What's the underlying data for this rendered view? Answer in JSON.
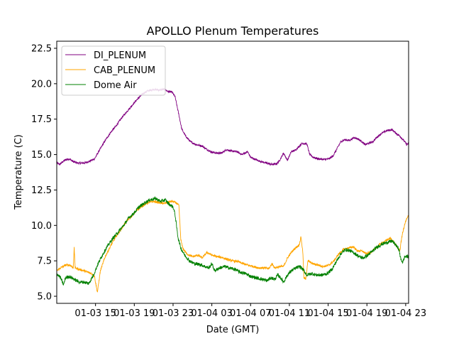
{
  "chart_data": {
    "type": "line",
    "title": "APOLLO Plenum Temperatures",
    "xlabel": "Date (GMT)",
    "ylabel": "Temperature (C)",
    "x_unit": "hours since 01-03 11:00 GMT",
    "xlim": [
      0,
      36.3
    ],
    "ylim": [
      4.5,
      23.0
    ],
    "x_ticks": [
      {
        "value": 4,
        "label": "01-03 15"
      },
      {
        "value": 8,
        "label": "01-03 19"
      },
      {
        "value": 12,
        "label": "01-03 23"
      },
      {
        "value": 16,
        "label": "01-04 03"
      },
      {
        "value": 20,
        "label": "01-04 07"
      },
      {
        "value": 24,
        "label": "01-04 11"
      },
      {
        "value": 28,
        "label": "01-04 15"
      },
      {
        "value": 32,
        "label": "01-04 19"
      },
      {
        "value": 36,
        "label": "01-04 23"
      }
    ],
    "y_ticks": [
      {
        "value": 5.0,
        "label": "5.0"
      },
      {
        "value": 7.5,
        "label": "7.5"
      },
      {
        "value": 10.0,
        "label": "10.0"
      },
      {
        "value": 12.5,
        "label": "12.5"
      },
      {
        "value": 15.0,
        "label": "15.0"
      },
      {
        "value": 17.5,
        "label": "17.5"
      },
      {
        "value": 20.0,
        "label": "20.0"
      },
      {
        "value": 22.5,
        "label": "22.5"
      }
    ],
    "legend_position": "top-left",
    "series": [
      {
        "name": "DI_PLENUM",
        "color": "#800080",
        "noise": 0.07,
        "points": [
          [
            0,
            14.4
          ],
          [
            0.3,
            14.3
          ],
          [
            0.8,
            14.6
          ],
          [
            1.3,
            14.7
          ],
          [
            1.7,
            14.5
          ],
          [
            2.2,
            14.4
          ],
          [
            2.8,
            14.4
          ],
          [
            3.3,
            14.5
          ],
          [
            3.9,
            14.7
          ],
          [
            4.4,
            15.3
          ],
          [
            5.0,
            16.0
          ],
          [
            5.6,
            16.6
          ],
          [
            6.1,
            17.0
          ],
          [
            6.7,
            17.6
          ],
          [
            7.2,
            18.0
          ],
          [
            7.8,
            18.5
          ],
          [
            8.3,
            18.9
          ],
          [
            8.9,
            19.3
          ],
          [
            9.4,
            19.5
          ],
          [
            10.0,
            19.6
          ],
          [
            10.6,
            19.55
          ],
          [
            11.1,
            19.6
          ],
          [
            11.5,
            19.45
          ],
          [
            11.9,
            19.4
          ],
          [
            12.2,
            19.1
          ],
          [
            12.6,
            17.8
          ],
          [
            12.9,
            16.8
          ],
          [
            13.3,
            16.3
          ],
          [
            13.8,
            15.9
          ],
          [
            14.4,
            15.7
          ],
          [
            15.0,
            15.6
          ],
          [
            15.4,
            15.4
          ],
          [
            15.9,
            15.2
          ],
          [
            16.5,
            15.1
          ],
          [
            17.0,
            15.1
          ],
          [
            17.5,
            15.35
          ],
          [
            18.0,
            15.25
          ],
          [
            18.6,
            15.2
          ],
          [
            19.1,
            15.0
          ],
          [
            19.7,
            15.2
          ],
          [
            20.0,
            14.8
          ],
          [
            20.5,
            14.65
          ],
          [
            21.1,
            14.5
          ],
          [
            21.6,
            14.4
          ],
          [
            22.2,
            14.3
          ],
          [
            22.7,
            14.35
          ],
          [
            23.0,
            14.6
          ],
          [
            23.4,
            15.1
          ],
          [
            23.8,
            14.6
          ],
          [
            24.2,
            15.2
          ],
          [
            24.6,
            15.3
          ],
          [
            24.9,
            15.5
          ],
          [
            25.3,
            15.8
          ],
          [
            25.8,
            15.75
          ],
          [
            26.1,
            15.0
          ],
          [
            26.5,
            14.8
          ],
          [
            27.0,
            14.7
          ],
          [
            27.6,
            14.65
          ],
          [
            28.1,
            14.7
          ],
          [
            28.5,
            14.9
          ],
          [
            28.9,
            15.4
          ],
          [
            29.3,
            15.9
          ],
          [
            29.7,
            16.05
          ],
          [
            30.2,
            16.0
          ],
          [
            30.7,
            16.2
          ],
          [
            31.1,
            16.1
          ],
          [
            31.5,
            15.9
          ],
          [
            31.8,
            15.7
          ],
          [
            32.2,
            15.8
          ],
          [
            32.6,
            15.9
          ],
          [
            33.0,
            16.2
          ],
          [
            33.5,
            16.5
          ],
          [
            34.1,
            16.7
          ],
          [
            34.6,
            16.75
          ],
          [
            35.0,
            16.5
          ],
          [
            35.4,
            16.3
          ],
          [
            35.8,
            16.0
          ],
          [
            36.1,
            15.7
          ],
          [
            36.3,
            15.8
          ]
        ]
      },
      {
        "name": "CAB_PLENUM",
        "color": "#ffa500",
        "noise": 0.08,
        "points": [
          [
            0,
            6.8
          ],
          [
            0.4,
            7.0
          ],
          [
            0.9,
            7.2
          ],
          [
            1.4,
            7.2
          ],
          [
            1.7,
            7.0
          ],
          [
            1.8,
            8.4
          ],
          [
            1.9,
            7.0
          ],
          [
            2.3,
            6.9
          ],
          [
            2.8,
            6.8
          ],
          [
            3.2,
            6.7
          ],
          [
            3.6,
            6.6
          ],
          [
            3.9,
            6.4
          ],
          [
            4.1,
            5.6
          ],
          [
            4.2,
            5.3
          ],
          [
            4.5,
            6.8
          ],
          [
            5.0,
            7.8
          ],
          [
            5.6,
            8.6
          ],
          [
            6.1,
            9.2
          ],
          [
            6.7,
            9.8
          ],
          [
            7.2,
            10.3
          ],
          [
            7.8,
            10.7
          ],
          [
            8.3,
            11.1
          ],
          [
            8.9,
            11.4
          ],
          [
            9.4,
            11.6
          ],
          [
            10.0,
            11.7
          ],
          [
            10.6,
            11.6
          ],
          [
            11.1,
            11.55
          ],
          [
            11.5,
            11.65
          ],
          [
            11.9,
            11.7
          ],
          [
            12.3,
            11.6
          ],
          [
            12.6,
            11.4
          ],
          [
            12.8,
            9.0
          ],
          [
            13.0,
            8.4
          ],
          [
            13.4,
            8.0
          ],
          [
            14.0,
            7.8
          ],
          [
            14.6,
            7.9
          ],
          [
            15.0,
            7.7
          ],
          [
            15.5,
            8.1
          ],
          [
            16.0,
            7.9
          ],
          [
            16.5,
            7.8
          ],
          [
            17.0,
            7.75
          ],
          [
            17.6,
            7.6
          ],
          [
            18.1,
            7.5
          ],
          [
            18.7,
            7.45
          ],
          [
            19.2,
            7.3
          ],
          [
            19.7,
            7.2
          ],
          [
            20.3,
            7.1
          ],
          [
            20.8,
            7.0
          ],
          [
            21.4,
            7.0
          ],
          [
            21.9,
            6.95
          ],
          [
            22.2,
            7.3
          ],
          [
            22.5,
            7.0
          ],
          [
            23.0,
            7.1
          ],
          [
            23.4,
            7.1
          ],
          [
            23.8,
            7.7
          ],
          [
            24.2,
            8.1
          ],
          [
            24.6,
            8.4
          ],
          [
            25.0,
            8.6
          ],
          [
            25.2,
            9.2
          ],
          [
            25.4,
            8.0
          ],
          [
            25.5,
            6.3
          ],
          [
            25.7,
            6.2
          ],
          [
            25.9,
            7.5
          ],
          [
            26.4,
            7.3
          ],
          [
            27.0,
            7.2
          ],
          [
            27.5,
            7.1
          ],
          [
            28.1,
            7.2
          ],
          [
            28.6,
            7.5
          ],
          [
            29.1,
            8.0
          ],
          [
            29.6,
            8.3
          ],
          [
            30.1,
            8.4
          ],
          [
            30.6,
            8.5
          ],
          [
            31.0,
            8.2
          ],
          [
            31.5,
            8.2
          ],
          [
            31.9,
            8.0
          ],
          [
            32.4,
            8.1
          ],
          [
            32.9,
            8.4
          ],
          [
            33.4,
            8.7
          ],
          [
            33.9,
            8.9
          ],
          [
            34.4,
            9.1
          ],
          [
            34.8,
            8.8
          ],
          [
            35.1,
            8.5
          ],
          [
            35.4,
            8.2
          ],
          [
            35.6,
            9.2
          ],
          [
            35.8,
            9.8
          ],
          [
            36.0,
            10.3
          ],
          [
            36.3,
            10.7
          ]
        ]
      },
      {
        "name": "Dome Air",
        "color": "#008000",
        "noise": 0.12,
        "points": [
          [
            0,
            6.6
          ],
          [
            0.4,
            6.3
          ],
          [
            0.7,
            5.8
          ],
          [
            0.9,
            6.3
          ],
          [
            1.3,
            6.4
          ],
          [
            1.8,
            6.2
          ],
          [
            2.3,
            6.0
          ],
          [
            2.8,
            6.0
          ],
          [
            3.3,
            5.9
          ],
          [
            3.8,
            6.5
          ],
          [
            4.2,
            7.2
          ],
          [
            4.7,
            7.9
          ],
          [
            5.2,
            8.5
          ],
          [
            5.8,
            9.1
          ],
          [
            6.3,
            9.5
          ],
          [
            6.9,
            10.0
          ],
          [
            7.4,
            10.5
          ],
          [
            8.0,
            10.9
          ],
          [
            8.5,
            11.3
          ],
          [
            9.1,
            11.6
          ],
          [
            9.6,
            11.8
          ],
          [
            10.2,
            11.9
          ],
          [
            10.7,
            11.7
          ],
          [
            11.2,
            11.8
          ],
          [
            11.6,
            11.5
          ],
          [
            12.0,
            11.3
          ],
          [
            12.2,
            10.8
          ],
          [
            12.5,
            9.2
          ],
          [
            12.8,
            8.4
          ],
          [
            13.2,
            7.9
          ],
          [
            13.7,
            7.5
          ],
          [
            14.2,
            7.3
          ],
          [
            14.8,
            7.25
          ],
          [
            15.3,
            7.1
          ],
          [
            15.7,
            7.0
          ],
          [
            16.0,
            7.3
          ],
          [
            16.3,
            6.8
          ],
          [
            16.8,
            7.0
          ],
          [
            17.3,
            7.1
          ],
          [
            17.8,
            7.0
          ],
          [
            18.4,
            6.9
          ],
          [
            18.9,
            6.7
          ],
          [
            19.5,
            6.6
          ],
          [
            20.0,
            6.4
          ],
          [
            20.6,
            6.3
          ],
          [
            21.2,
            6.2
          ],
          [
            21.7,
            6.1
          ],
          [
            22.1,
            6.3
          ],
          [
            22.5,
            6.2
          ],
          [
            22.8,
            6.5
          ],
          [
            23.1,
            6.3
          ],
          [
            23.4,
            6.0
          ],
          [
            23.8,
            6.5
          ],
          [
            24.2,
            6.8
          ],
          [
            24.7,
            7.0
          ],
          [
            25.1,
            7.1
          ],
          [
            25.5,
            6.8
          ],
          [
            25.8,
            6.5
          ],
          [
            26.3,
            6.6
          ],
          [
            26.8,
            6.5
          ],
          [
            27.4,
            6.5
          ],
          [
            27.9,
            6.6
          ],
          [
            28.4,
            6.9
          ],
          [
            28.8,
            7.4
          ],
          [
            29.3,
            8.0
          ],
          [
            29.8,
            8.3
          ],
          [
            30.3,
            8.2
          ],
          [
            30.8,
            8.0
          ],
          [
            31.2,
            7.8
          ],
          [
            31.6,
            7.7
          ],
          [
            32.1,
            7.9
          ],
          [
            32.6,
            8.2
          ],
          [
            33.1,
            8.5
          ],
          [
            33.6,
            8.7
          ],
          [
            34.1,
            8.8
          ],
          [
            34.6,
            8.9
          ],
          [
            35.0,
            8.6
          ],
          [
            35.3,
            8.3
          ],
          [
            35.5,
            7.6
          ],
          [
            35.7,
            7.4
          ],
          [
            35.9,
            7.8
          ],
          [
            36.3,
            7.8
          ]
        ]
      }
    ]
  }
}
